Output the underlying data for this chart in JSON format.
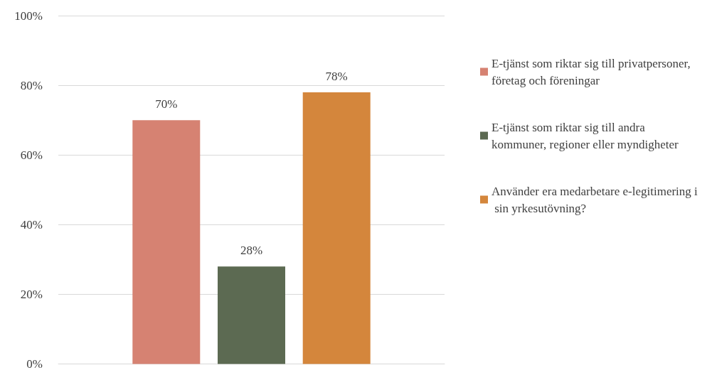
{
  "chart_data": {
    "type": "bar",
    "categories": [
      null
    ],
    "series": [
      {
        "name": "E-tjänst som riktar sig till privatpersoner, företag och föreningar",
        "color": "#d68272",
        "values": [
          70
        ],
        "value_labels": [
          "70%"
        ]
      },
      {
        "name": "E-tjänst som riktar sig till andra kommuner, regioner eller myndigheter",
        "color": "#5c6a52",
        "values": [
          28
        ],
        "value_labels": [
          "28%"
        ]
      },
      {
        "name": "Använder era medarbetare e-legitimering i sin yrkesutövning?",
        "color": "#d4863c",
        "values": [
          78
        ],
        "value_labels": [
          "78%"
        ]
      }
    ],
    "ylim": [
      0,
      100
    ],
    "yticks": [
      {
        "value": 0,
        "label": "0%"
      },
      {
        "value": 20,
        "label": "20%"
      },
      {
        "value": 40,
        "label": "40%"
      },
      {
        "value": 60,
        "label": "60%"
      },
      {
        "value": 80,
        "label": "80%"
      },
      {
        "value": 100,
        "label": "100%"
      }
    ],
    "grid": "y",
    "legend": "right"
  }
}
